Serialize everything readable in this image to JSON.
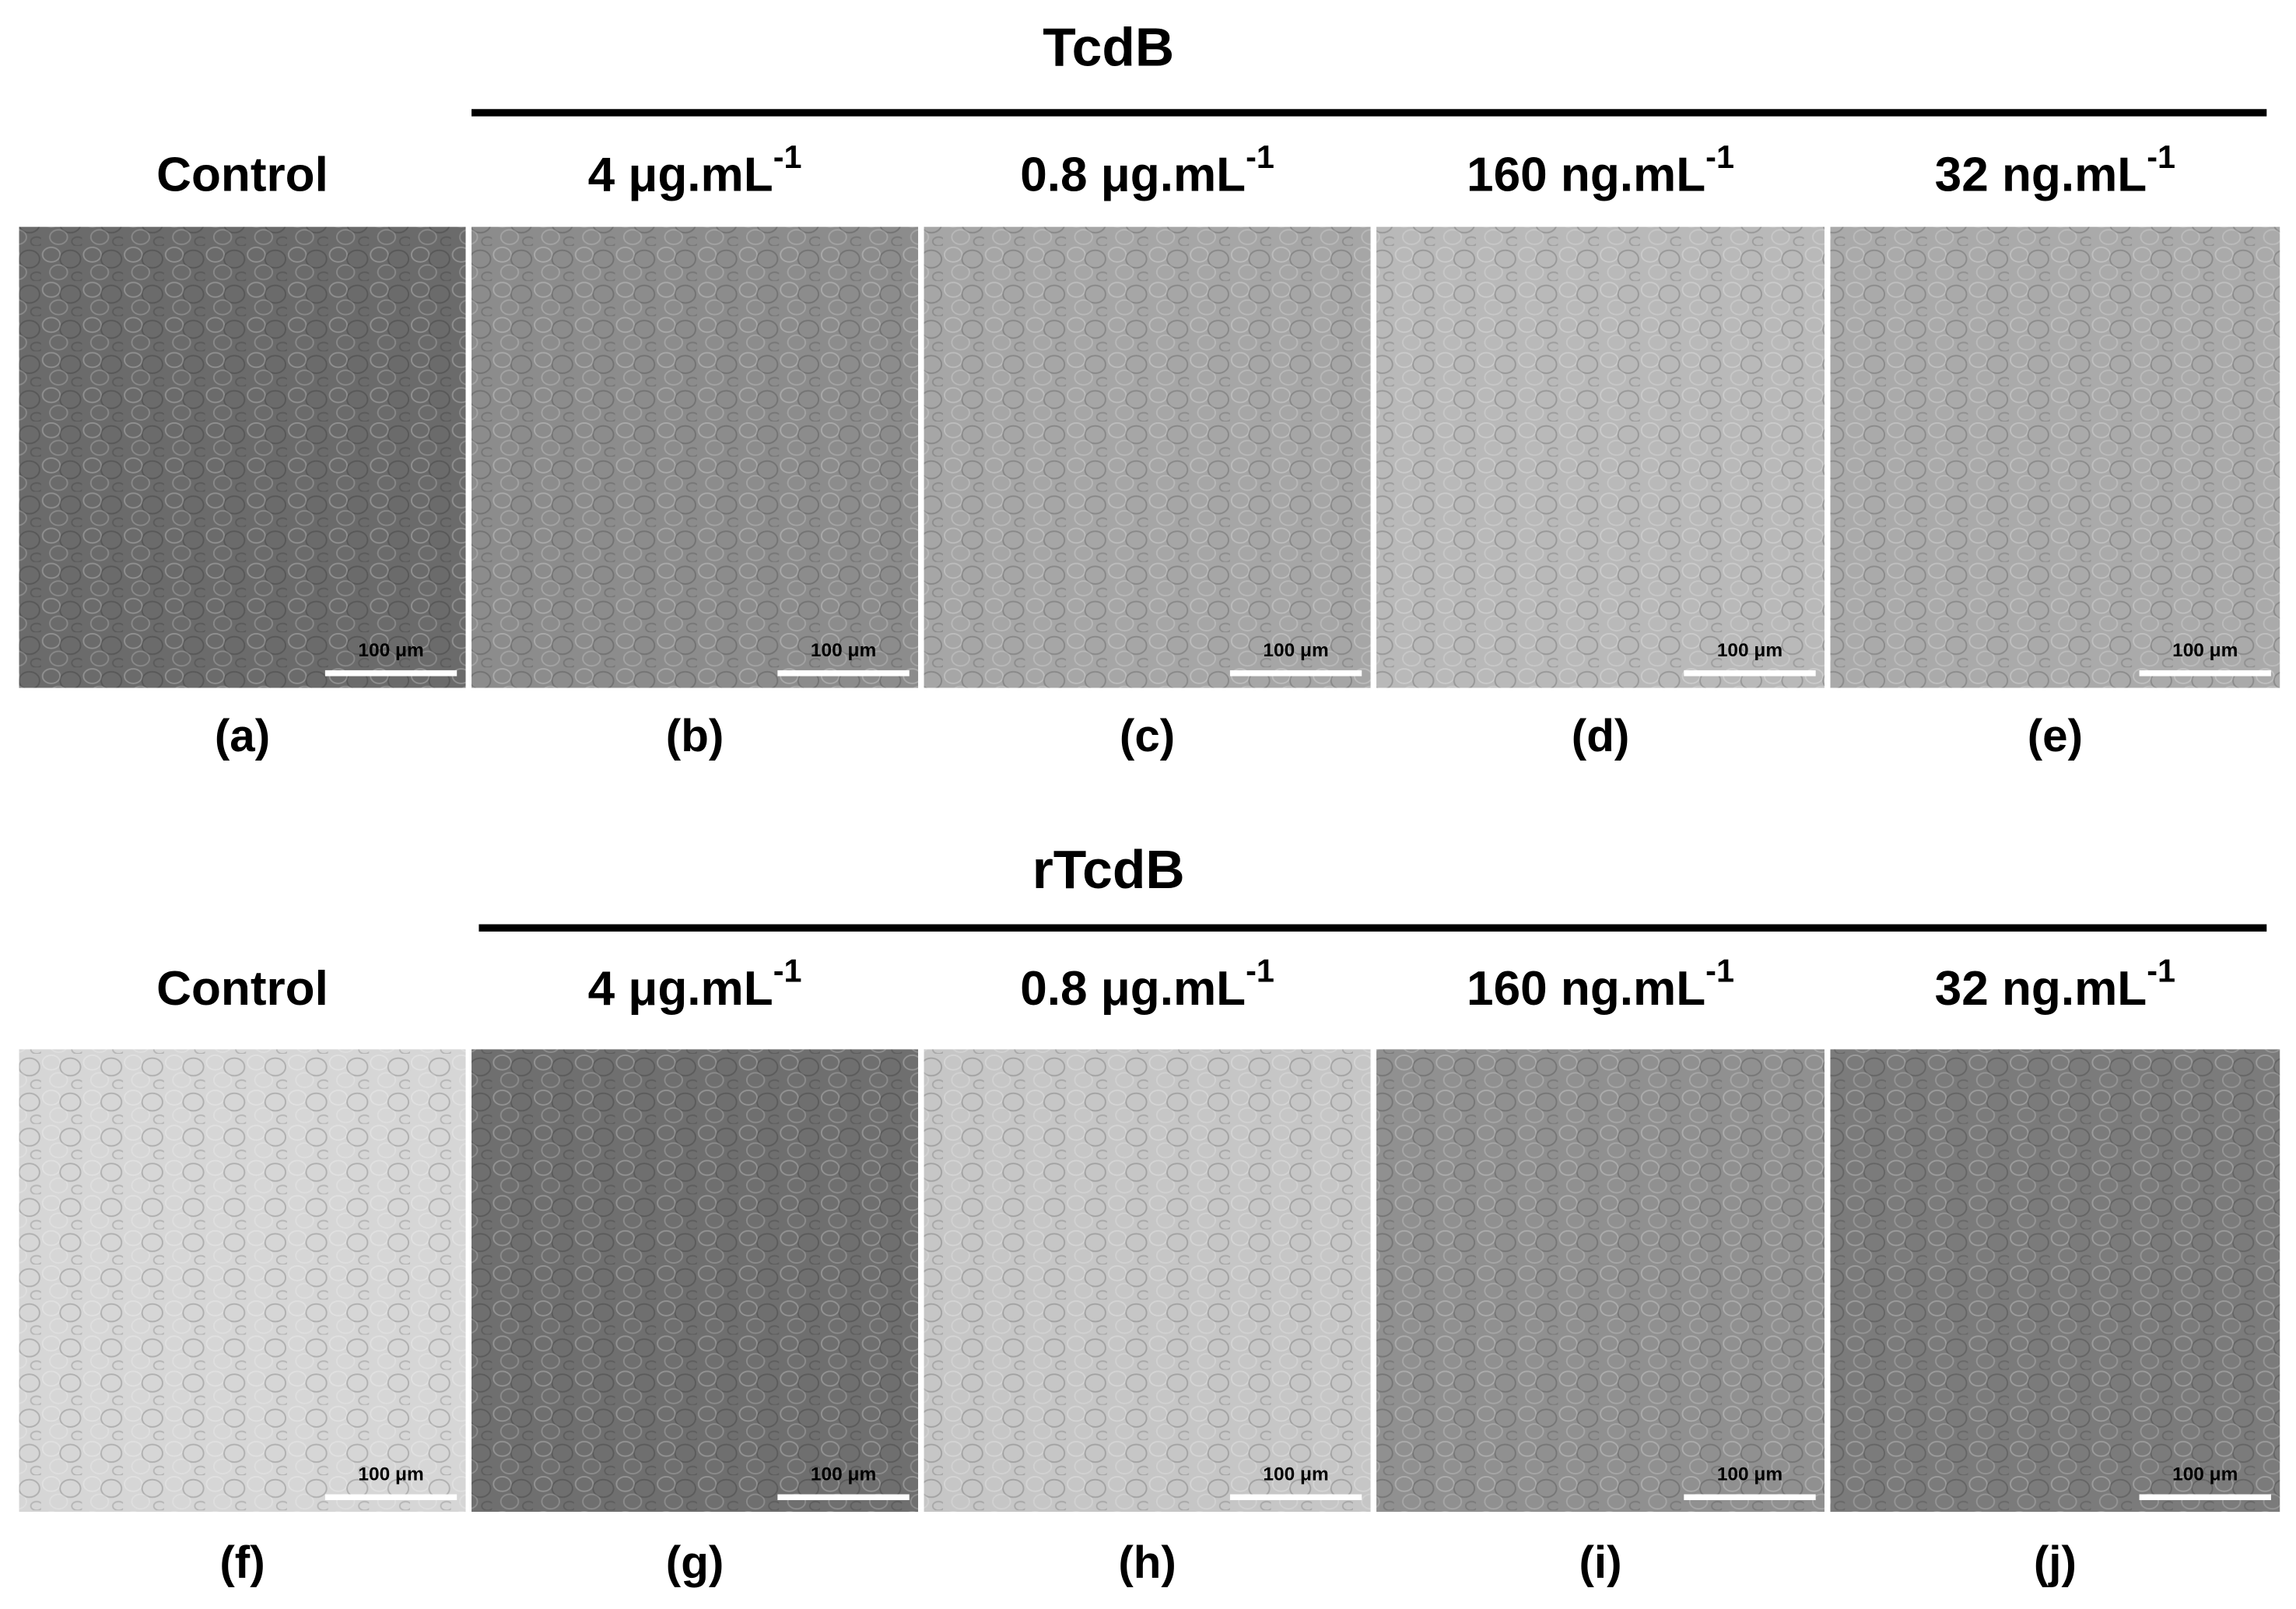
{
  "groups": [
    {
      "title": "TcdB",
      "columns": [
        {
          "text": "Control"
        },
        {
          "text": "4  μg.mL",
          "sup": "-1"
        },
        {
          "text": "0.8  μg.mL",
          "sup": "-1"
        },
        {
          "text": "160 ng.mL",
          "sup": "-1"
        },
        {
          "text": "32 ng.mL",
          "sup": "-1"
        }
      ],
      "panels": [
        {
          "label": "(a)",
          "scale_bar": "100 μm",
          "tone": "#6b6b6b"
        },
        {
          "label": "(b)",
          "scale_bar": "100 μm",
          "tone": "#8c8c8c"
        },
        {
          "label": "(c)",
          "scale_bar": "100 μm",
          "tone": "#a6a6a6"
        },
        {
          "label": "(d)",
          "scale_bar": "100 μm",
          "tone": "#b9b9b9"
        },
        {
          "label": "(e)",
          "scale_bar": "100 μm",
          "tone": "#aaaaaa"
        }
      ]
    },
    {
      "title": "rTcdB",
      "columns": [
        {
          "text": "Control"
        },
        {
          "text": "4  μg.mL",
          "sup": "-1"
        },
        {
          "text": "0.8  μg.mL",
          "sup": "-1"
        },
        {
          "text": "160 ng.mL",
          "sup": "-1"
        },
        {
          "text": "32 ng.mL",
          "sup": "-1"
        }
      ],
      "panels": [
        {
          "label": "(f)",
          "scale_bar": "100 μm",
          "tone": "#d6d6d6"
        },
        {
          "label": "(g)",
          "scale_bar": "100 μm",
          "tone": "#6f6f6f"
        },
        {
          "label": "(h)",
          "scale_bar": "100 μm",
          "tone": "#c6c6c6"
        },
        {
          "label": "(i)",
          "scale_bar": "100 μm",
          "tone": "#909090"
        },
        {
          "label": "(j)",
          "scale_bar": "100 μm",
          "tone": "#7b7b7b"
        }
      ]
    }
  ]
}
